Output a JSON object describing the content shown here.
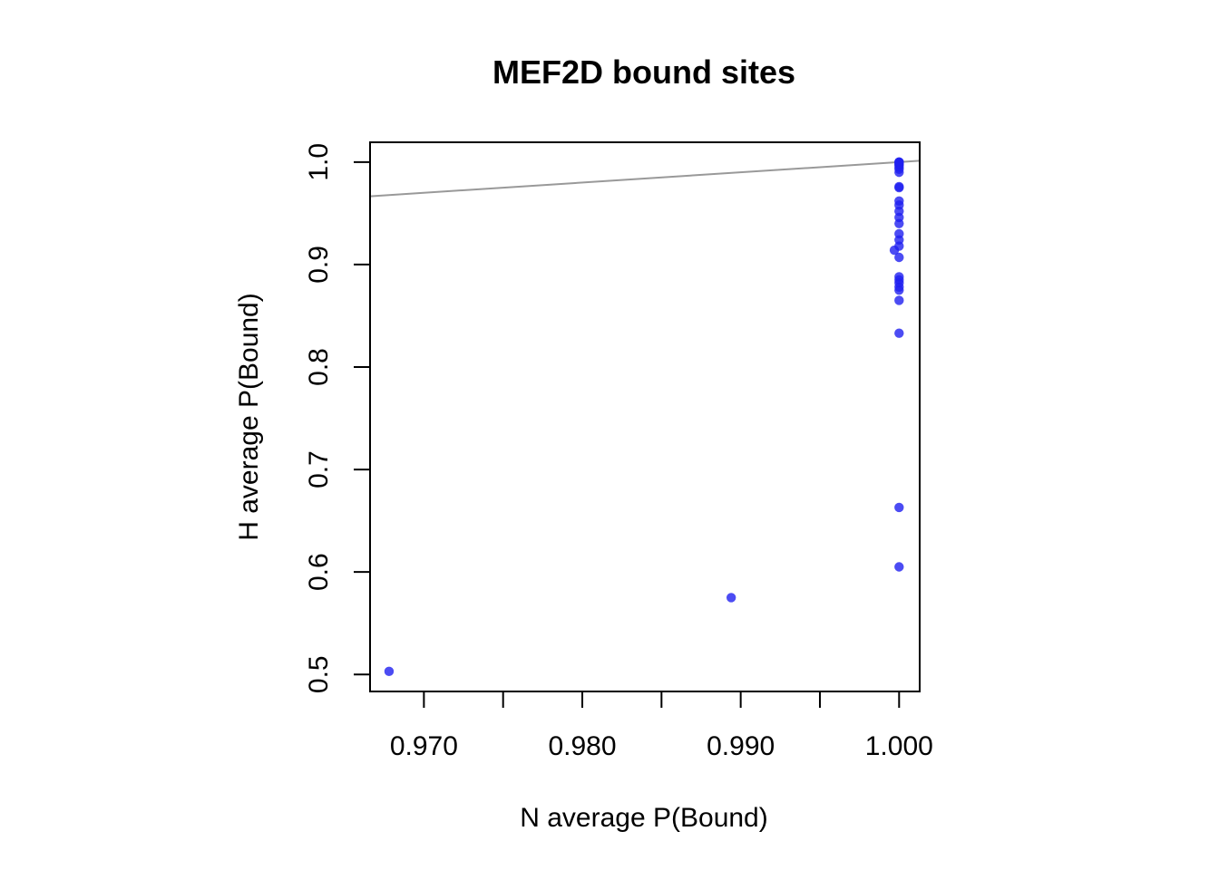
{
  "chart_data": {
    "type": "scatter",
    "title": "MEF2D bound sites",
    "xlabel": "N average P(Bound)",
    "ylabel": "H average P(Bound)",
    "xlim": [
      0.9666,
      1.0013
    ],
    "ylim": [
      0.4834,
      1.0193
    ],
    "x_ticks": [
      0.97,
      0.975,
      0.98,
      0.985,
      0.99,
      0.995,
      1.0
    ],
    "x_tick_labels": [
      {
        "value": 0.97,
        "label": "0.970"
      },
      {
        "value": 0.98,
        "label": "0.980"
      },
      {
        "value": 0.99,
        "label": "0.990"
      },
      {
        "value": 1.0,
        "label": "1.000"
      }
    ],
    "y_ticks": [
      {
        "value": 0.5,
        "label": "0.5"
      },
      {
        "value": 0.6,
        "label": "0.6"
      },
      {
        "value": 0.7,
        "label": "0.7"
      },
      {
        "value": 0.8,
        "label": "0.8"
      },
      {
        "value": 0.9,
        "label": "0.9"
      },
      {
        "value": 1.0,
        "label": "1.0"
      }
    ],
    "grid": false,
    "reference_line": {
      "slope": 1,
      "intercept": 0,
      "color": "#999999"
    },
    "point_color": "#1f1ff0",
    "series": [
      {
        "points": [
          {
            "x": 0.9678,
            "y": 0.503
          },
          {
            "x": 0.9894,
            "y": 0.575
          },
          {
            "x": 1.0,
            "y": 0.605
          },
          {
            "x": 1.0,
            "y": 0.663
          },
          {
            "x": 1.0,
            "y": 0.833
          },
          {
            "x": 1.0,
            "y": 0.865
          },
          {
            "x": 1.0,
            "y": 0.875
          },
          {
            "x": 1.0,
            "y": 0.878
          },
          {
            "x": 1.0,
            "y": 0.882
          },
          {
            "x": 1.0,
            "y": 0.885
          },
          {
            "x": 1.0,
            "y": 0.888
          },
          {
            "x": 1.0,
            "y": 0.907
          },
          {
            "x": 0.9997,
            "y": 0.914
          },
          {
            "x": 1.0,
            "y": 0.918
          },
          {
            "x": 1.0,
            "y": 0.924
          },
          {
            "x": 1.0,
            "y": 0.93
          },
          {
            "x": 1.0,
            "y": 0.94
          },
          {
            "x": 1.0,
            "y": 0.946
          },
          {
            "x": 1.0,
            "y": 0.952
          },
          {
            "x": 1.0,
            "y": 0.958
          },
          {
            "x": 1.0,
            "y": 0.962
          },
          {
            "x": 1.0,
            "y": 0.975
          },
          {
            "x": 1.0,
            "y": 0.976
          },
          {
            "x": 1.0,
            "y": 0.99
          },
          {
            "x": 1.0,
            "y": 0.993
          },
          {
            "x": 1.0,
            "y": 0.995
          },
          {
            "x": 1.0,
            "y": 0.997
          },
          {
            "x": 1.0,
            "y": 0.998
          },
          {
            "x": 1.0,
            "y": 0.999
          },
          {
            "x": 1.0,
            "y": 1.0
          },
          {
            "x": 1.0,
            "y": 1.0
          }
        ]
      }
    ]
  }
}
